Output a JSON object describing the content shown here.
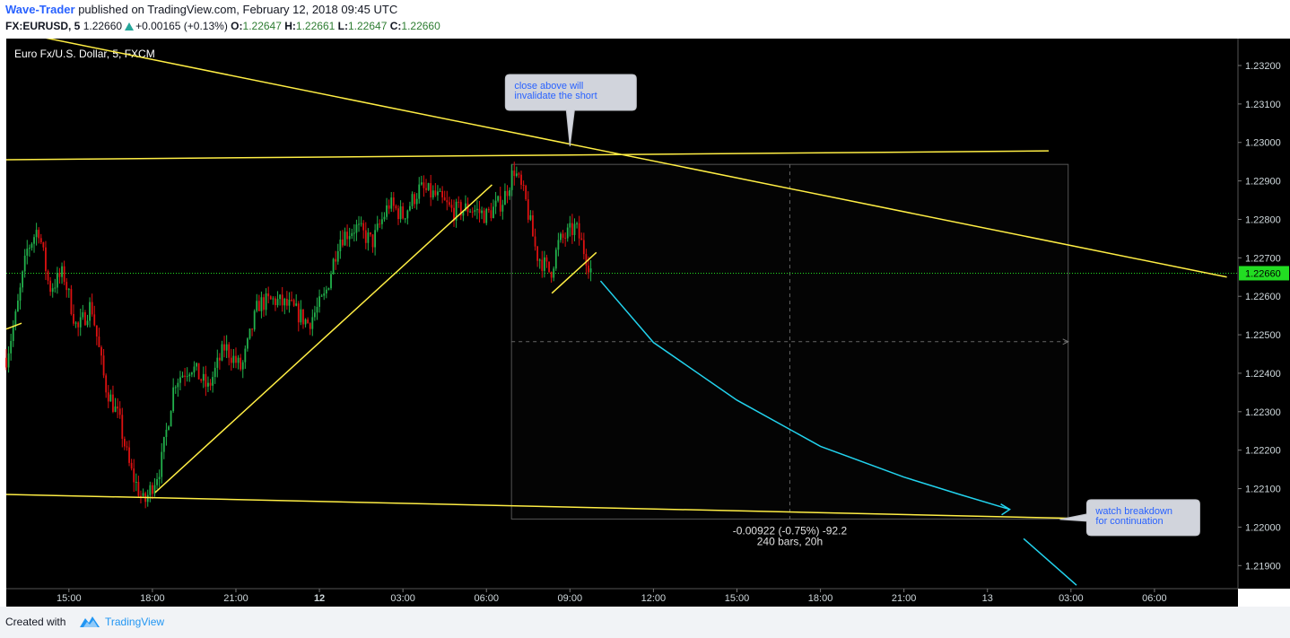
{
  "header": {
    "author": "Wave-Trader",
    "published_text": "published on TradingView.com, February 12, 2018 09:45 UTC",
    "symbol": "FX:EURUSD, 5",
    "price": "1.22660",
    "change": "+0.00165 (+0.13%)",
    "o_label": "O:",
    "o_value": "1.22647",
    "h_label": "H:",
    "h_value": "1.22661",
    "l_label": "L:",
    "l_value": "1.22647",
    "c_label": "C:",
    "c_value": "1.22660"
  },
  "footer": {
    "created_with": "Created with",
    "brand": "TradingView"
  },
  "chart_data": {
    "type": "candlestick",
    "title": "Euro Fx/U.S. Dollar, 5, FXCM",
    "time_range": [
      "12:45 Feb 11",
      "08:30 Feb 13"
    ],
    "ylim": [
      1.2184,
      1.2327
    ],
    "price_ticks": [
      "1.23200",
      "1.23100",
      "1.23000",
      "1.22900",
      "1.22800",
      "1.22700",
      "1.22600",
      "1.22500",
      "1.22400",
      "1.22300",
      "1.22200",
      "1.22100",
      "1.22000",
      "1.21900"
    ],
    "time_ticks": [
      {
        "t": 15,
        "label": "15:00",
        "bold": false
      },
      {
        "t": 18,
        "label": "18:00",
        "bold": false
      },
      {
        "t": 21,
        "label": "21:00",
        "bold": false
      },
      {
        "t": 24,
        "label": "12",
        "bold": true
      },
      {
        "t": 27,
        "label": "03:00",
        "bold": false
      },
      {
        "t": 30,
        "label": "06:00",
        "bold": false
      },
      {
        "t": 33,
        "label": "09:00",
        "bold": false
      },
      {
        "t": 36,
        "label": "12:00",
        "bold": false
      },
      {
        "t": 39,
        "label": "15:00",
        "bold": false
      },
      {
        "t": 42,
        "label": "18:00",
        "bold": false
      },
      {
        "t": 45,
        "label": "21:00",
        "bold": false
      },
      {
        "t": 48,
        "label": "13",
        "bold": false
      },
      {
        "t": 51,
        "label": "03:00",
        "bold": false
      },
      {
        "t": 54,
        "label": "06:00",
        "bold": false
      }
    ],
    "last_price": 1.2266,
    "last_price_label": "1.22660",
    "price_path": [
      [
        12.75,
        1.2244
      ],
      [
        13.1,
        1.2255
      ],
      [
        13.5,
        1.2272
      ],
      [
        13.9,
        1.2278
      ],
      [
        14.3,
        1.2262
      ],
      [
        14.8,
        1.2266
      ],
      [
        15.3,
        1.2251
      ],
      [
        15.8,
        1.2258
      ],
      [
        16.3,
        1.2237
      ],
      [
        16.8,
        1.2228
      ],
      [
        17.2,
        1.2215
      ],
      [
        17.7,
        1.2206
      ],
      [
        18.3,
        1.2216
      ],
      [
        18.8,
        1.2238
      ],
      [
        19.4,
        1.2242
      ],
      [
        20.0,
        1.2236
      ],
      [
        20.6,
        1.2247
      ],
      [
        21.2,
        1.2241
      ],
      [
        21.8,
        1.2258
      ],
      [
        22.4,
        1.2259
      ],
      [
        23.0,
        1.2257
      ],
      [
        23.6,
        1.2253
      ],
      [
        24.2,
        1.226
      ],
      [
        24.7,
        1.2275
      ],
      [
        25.3,
        1.2278
      ],
      [
        25.9,
        1.2274
      ],
      [
        26.5,
        1.2284
      ],
      [
        27.0,
        1.2281
      ],
      [
        27.6,
        1.2288
      ],
      [
        28.2,
        1.2286
      ],
      [
        28.8,
        1.2282
      ],
      [
        29.4,
        1.2283
      ],
      [
        30.0,
        1.2281
      ],
      [
        30.6,
        1.2285
      ],
      [
        31.0,
        1.2293
      ],
      [
        31.4,
        1.2285
      ],
      [
        31.8,
        1.2271
      ],
      [
        32.3,
        1.2266
      ],
      [
        32.6,
        1.2274
      ],
      [
        32.9,
        1.2276
      ],
      [
        33.2,
        1.2278
      ],
      [
        33.5,
        1.2272
      ],
      [
        33.8,
        1.2266
      ]
    ],
    "annotations": [
      {
        "kind": "callout",
        "text_lines": [
          "close above will",
          "invalidate the short"
        ],
        "time": 33.0,
        "price": 1.2299
      },
      {
        "kind": "callout",
        "text_lines": [
          "watch breakdown",
          "for continuation"
        ],
        "time": 50.6,
        "price": 1.2202
      }
    ],
    "measure": {
      "text_line1": "-0.00922 (-0.75%) -92.2",
      "text_line2": "240 bars, 20h",
      "t_start": 30.9,
      "t_end": 50.9,
      "p_top": 1.22943,
      "p_bottom": 1.22021
    },
    "trendlines": [
      {
        "color": "#ffee44",
        "from": [
          13.6,
          1.2328
        ],
        "to": [
          56.6,
          1.2265
        ]
      },
      {
        "color": "#ffee44",
        "from": [
          12.75,
          1.22955
        ],
        "to": [
          50.2,
          1.22978
        ]
      },
      {
        "color": "#ffee44",
        "from": [
          12.75,
          1.22085
        ],
        "to": [
          50.9,
          1.22023
        ]
      },
      {
        "color": "#ffee44",
        "from": [
          18.1,
          1.2209
        ],
        "to": [
          30.2,
          1.2289
        ]
      },
      {
        "color": "#ffee44",
        "from": [
          12.75,
          1.22515
        ],
        "to": [
          13.3,
          1.2253
        ]
      },
      {
        "color": "#ffee44",
        "from": [
          32.35,
          1.22608
        ],
        "to": [
          33.95,
          1.22714
        ]
      }
    ],
    "projection_color": "#22d3ee",
    "projection": [
      [
        34.1,
        1.2264
      ],
      [
        36.0,
        1.2248
      ],
      [
        39.0,
        1.2233
      ],
      [
        42.0,
        1.2221
      ],
      [
        45.0,
        1.2213
      ],
      [
        47.0,
        1.22085
      ],
      [
        48.8,
        1.22046
      ]
    ],
    "projection_tail": [
      [
        49.3,
        1.2197
      ],
      [
        51.2,
        1.21849
      ]
    ],
    "colors": {
      "background": "#000000",
      "up_candle": "#22b14c",
      "down_candle": "#dd1111",
      "axis_text": "#cfd8dc",
      "last_price_bg": "#22dd22",
      "trendline": "#ffee44",
      "projection": "#22d3ee"
    }
  }
}
